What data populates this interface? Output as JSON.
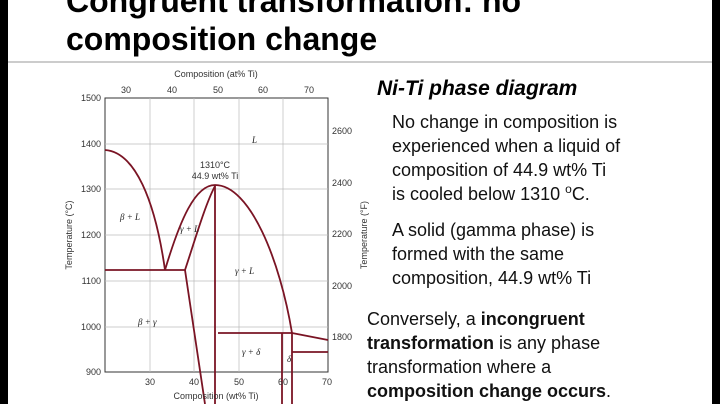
{
  "title": [
    "Congruent transformation: no",
    "composition change"
  ],
  "diagram": {
    "top_axis_label": "Composition (at% Ti)",
    "top_ticks": [
      "30",
      "40",
      "50",
      "60",
      "70"
    ],
    "bottom_axis_label": "Composition (wt% Ti)",
    "bottom_ticks": [
      "30",
      "40",
      "50",
      "60",
      "70"
    ],
    "left_axis_label": "Temperature (°C)",
    "left_ticks": [
      "1500",
      "1400",
      "1300",
      "1200",
      "1100",
      "1000",
      "900"
    ],
    "right_axis_label": "Temperature (°F)",
    "right_ticks": [
      "2600",
      "2400",
      "2200",
      "2000",
      "1800"
    ],
    "regions": [
      "L",
      "β + L",
      "γ + L",
      "γ + L",
      "β + γ",
      "γ + δ",
      "δ"
    ],
    "annotation": [
      "1310°C",
      "44.9 wt% Ti"
    ]
  },
  "heading": "Ni-Ti phase diagram",
  "para1": [
    "No change in composition is",
    "experienced when a liquid of",
    "composition of 44.9 wt% Ti",
    "is cooled below 1310 ",
    "o",
    "C."
  ],
  "para2": [
    "A solid (gamma phase) is",
    "formed with the same",
    "composition, 44.9 wt% Ti"
  ],
  "para3": [
    "Conversely, a ",
    "incongruent",
    "transformation",
    " is any phase",
    "transformation where a",
    "composition change occurs",
    "."
  ]
}
